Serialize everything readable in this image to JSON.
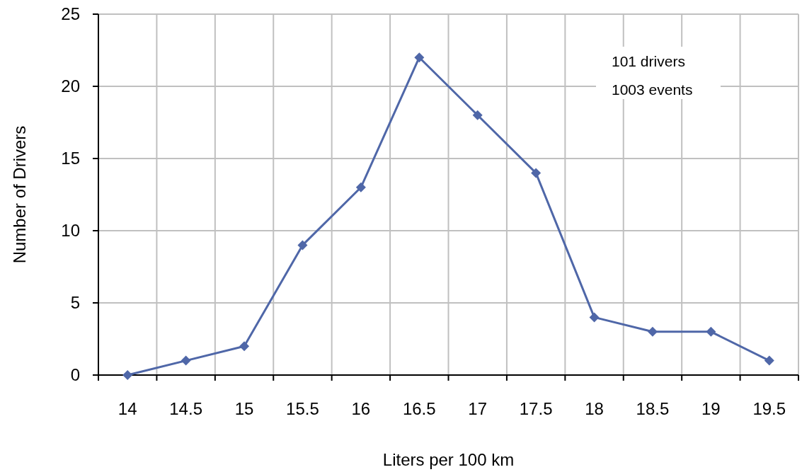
{
  "chart_data": {
    "type": "line",
    "xlabel": "Liters per 100 km",
    "ylabel": "Number of Drivers",
    "categories": [
      "14",
      "14.5",
      "15",
      "15.5",
      "16",
      "16.5",
      "17",
      "17.5",
      "18",
      "18.5",
      "19",
      "19.5"
    ],
    "series": [
      {
        "color": "#4f67a8",
        "values": [
          0,
          1,
          2,
          9,
          13,
          22,
          18,
          14,
          4,
          3,
          3,
          1
        ]
      }
    ],
    "ylim": [
      0,
      25
    ],
    "yticks": [
      0,
      5,
      10,
      15,
      20,
      25
    ],
    "grid": true,
    "marker": "diamond",
    "line_style": "solid",
    "annotations": [
      "101 drivers",
      "1003 events"
    ]
  }
}
